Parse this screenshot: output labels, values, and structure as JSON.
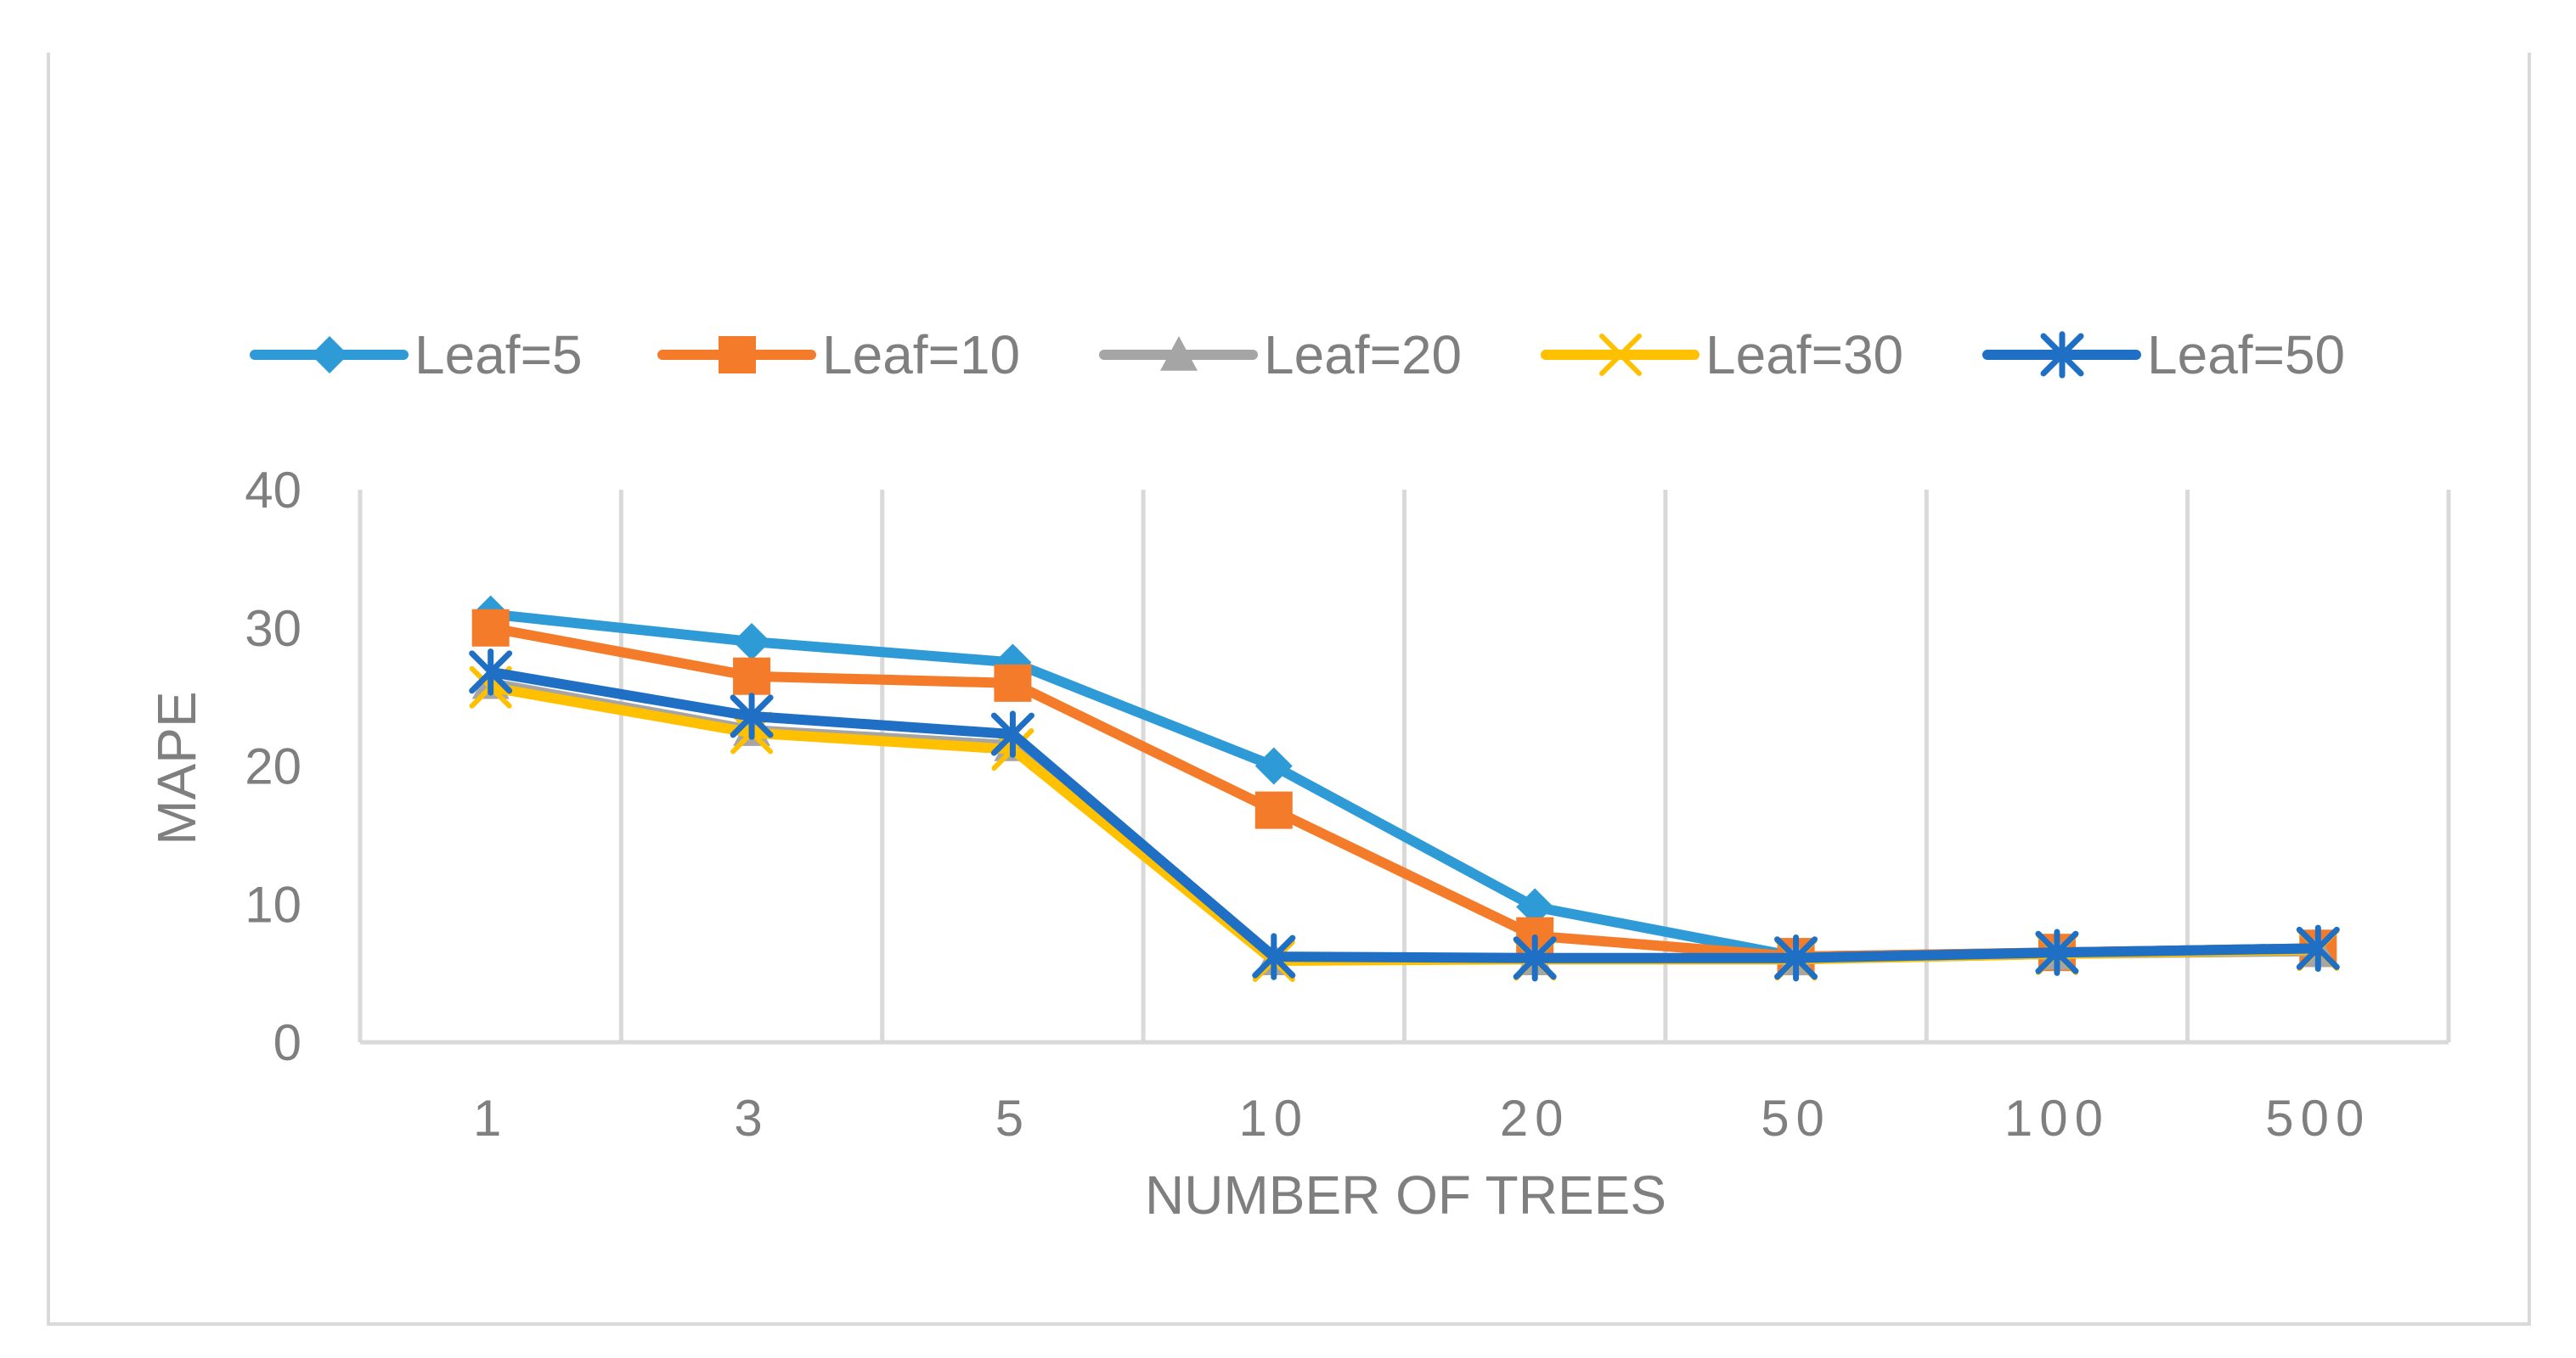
{
  "chart_data": {
    "type": "line",
    "title": "",
    "xlabel": "NUMBER OF TREES",
    "ylabel": "MAPE",
    "categories": [
      "1",
      "3",
      "5",
      "10",
      "20",
      "50",
      "100",
      "500"
    ],
    "yticks": [
      "0",
      "10",
      "20",
      "30",
      "40"
    ],
    "ylim": [
      0,
      40
    ],
    "grid": "vertical",
    "legend_position": "top",
    "series": [
      {
        "name": "Leaf=5",
        "color": "#2E9BD6",
        "marker": "diamond",
        "values": [
          31,
          29,
          27.5,
          20,
          9.8,
          6.2,
          6.5,
          6.8
        ]
      },
      {
        "name": "Leaf=10",
        "color": "#F47B2A",
        "marker": "square",
        "values": [
          30,
          26.5,
          26,
          16.8,
          7.7,
          6.2,
          6.5,
          6.8
        ]
      },
      {
        "name": "Leaf=20",
        "color": "#A5A5A5",
        "marker": "triangle",
        "values": [
          26,
          22.6,
          21.5,
          6,
          6,
          6,
          6.4,
          6.6
        ]
      },
      {
        "name": "Leaf=30",
        "color": "#FFC000",
        "marker": "x",
        "values": [
          25.7,
          22.4,
          21.2,
          5.9,
          6,
          6,
          6.4,
          6.7
        ]
      },
      {
        "name": "Leaf=50",
        "color": "#1F6FC5",
        "marker": "star",
        "values": [
          26.8,
          23.6,
          22.3,
          6.2,
          6.1,
          6.1,
          6.5,
          6.8
        ]
      }
    ]
  }
}
